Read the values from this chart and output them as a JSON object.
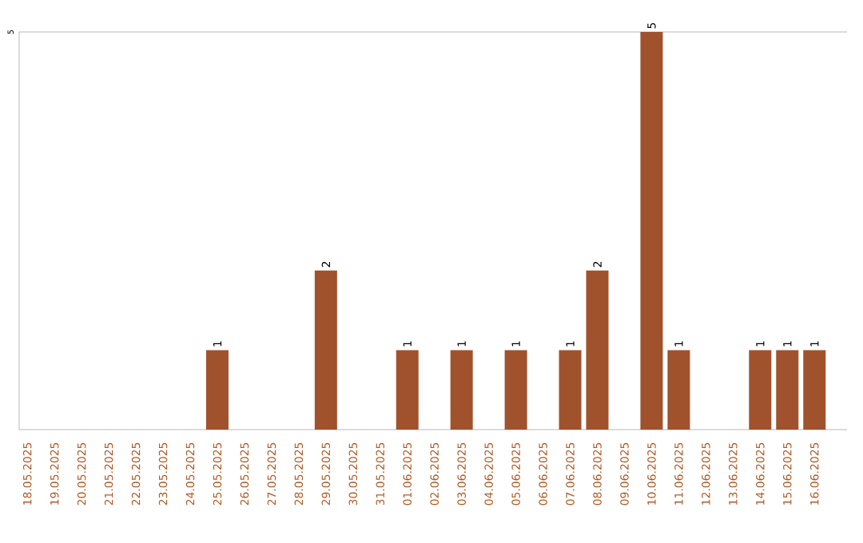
{
  "chart_data": {
    "type": "bar",
    "categories": [
      "18.05.2025",
      "19.05.2025",
      "20.05.2025",
      "21.05.2025",
      "22.05.2025",
      "23.05.2025",
      "24.05.2025",
      "25.05.2025",
      "26.05.2025",
      "27.05.2025",
      "28.05.2025",
      "29.05.2025",
      "30.05.2025",
      "31.05.2025",
      "01.06.2025",
      "02.06.2025",
      "03.06.2025",
      "04.06.2025",
      "05.06.2025",
      "06.06.2025",
      "07.06.2025",
      "08.06.2025",
      "09.06.2025",
      "10.06.2025",
      "11.06.2025",
      "12.06.2025",
      "13.06.2025",
      "14.06.2025",
      "15.06.2025",
      "16.06.2025"
    ],
    "values": [
      0,
      0,
      0,
      0,
      0,
      0,
      0,
      1,
      0,
      0,
      0,
      2,
      0,
      0,
      1,
      0,
      1,
      0,
      1,
      0,
      1,
      2,
      0,
      5,
      1,
      0,
      0,
      1,
      1,
      1
    ],
    "value_labels": [
      null,
      null,
      null,
      null,
      null,
      null,
      null,
      "1",
      null,
      null,
      null,
      "2",
      null,
      null,
      "1",
      null,
      "1",
      null,
      "1",
      null,
      "1",
      "2",
      null,
      "5",
      "1",
      null,
      null,
      "1",
      "1",
      "1"
    ],
    "color": "#a0522d",
    "ylim": [
      0,
      5
    ],
    "yticks": [
      5
    ]
  }
}
